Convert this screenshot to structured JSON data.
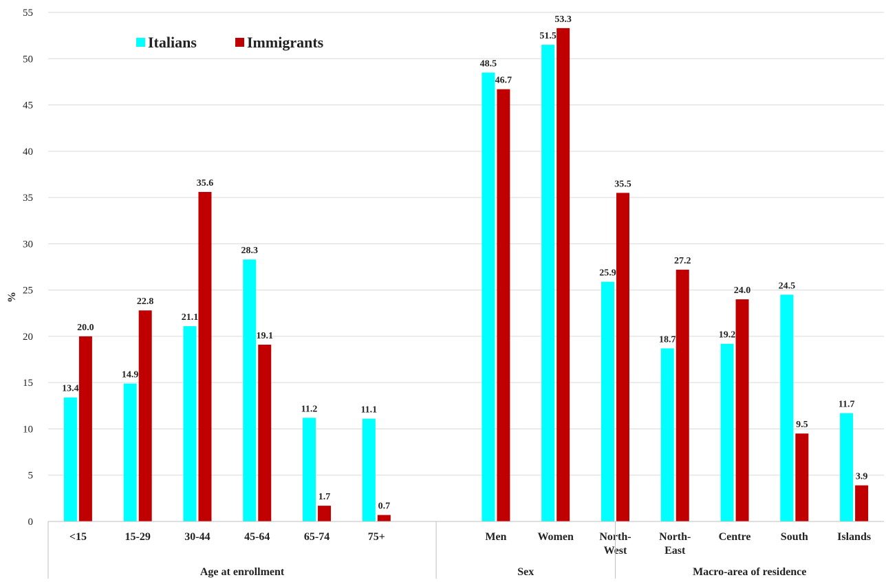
{
  "chart_data": {
    "type": "bar",
    "ylabel": "%",
    "ylim": [
      0,
      55
    ],
    "yticks": [
      0,
      5,
      10,
      15,
      20,
      25,
      30,
      35,
      40,
      45,
      50,
      55
    ],
    "grid": true,
    "legend_position": "top-left",
    "categories": [
      [
        "<15"
      ],
      [
        "15-29"
      ],
      [
        "30-44"
      ],
      [
        "45-64"
      ],
      [
        "65-74"
      ],
      [
        "75+"
      ],
      [
        "Men"
      ],
      [
        "Women"
      ],
      [
        "North-",
        "West"
      ],
      [
        "North-",
        "East"
      ],
      [
        "Centre"
      ],
      [
        "South"
      ],
      [
        "Islands"
      ]
    ],
    "groups": [
      {
        "label": "Age at enrollment",
        "start": 0,
        "end": 5
      },
      {
        "label": "Sex",
        "start": 6,
        "end": 7
      },
      {
        "label": "Macro-area of residence",
        "start": 8,
        "end": 12
      }
    ],
    "series": [
      {
        "name": "Italians",
        "color": "#00FFFF",
        "values": [
          13.4,
          14.9,
          21.1,
          28.3,
          11.2,
          11.1,
          48.5,
          51.5,
          25.9,
          18.7,
          19.2,
          24.5,
          11.7
        ],
        "labels": [
          "13.4",
          "14.9",
          "21.1",
          "28.3",
          "11.2",
          "11.1",
          "48.5",
          "51.5",
          "25.9",
          "18.7",
          "19.2",
          "24.5",
          "11.7"
        ]
      },
      {
        "name": "Immigrants",
        "color": "#C00000",
        "values": [
          20.0,
          22.8,
          35.6,
          19.1,
          1.7,
          0.7,
          46.7,
          53.3,
          35.5,
          27.2,
          24.0,
          9.5,
          3.9
        ],
        "labels": [
          "20.0",
          "22.8",
          "35.6",
          "19.1",
          "1.7",
          "0.7",
          "46.7",
          "53.3",
          "35.5",
          "27.2",
          "24.0",
          "9.5",
          "3.9"
        ]
      }
    ]
  }
}
